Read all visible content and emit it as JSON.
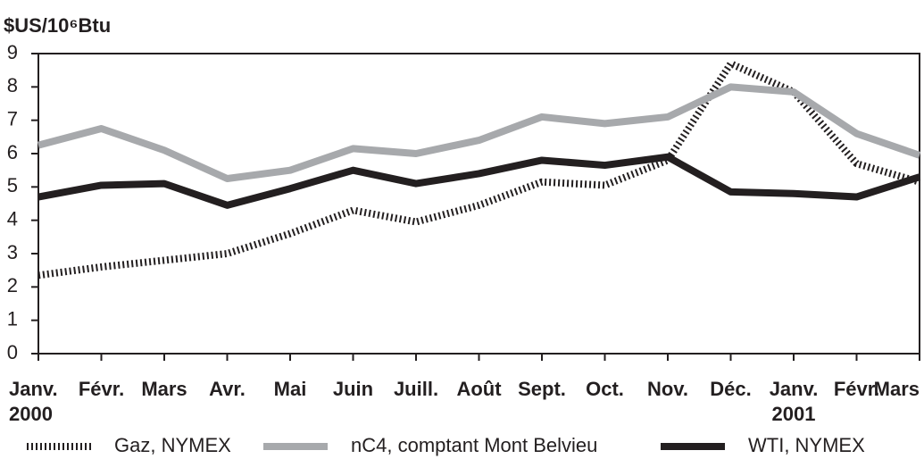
{
  "chart_data": {
    "type": "line",
    "y_label": "$US/10⁶Btu",
    "categories": [
      "Janv.",
      "Févr.",
      "Mars",
      "Avr.",
      "Mai",
      "Juin",
      "Juill.",
      "Août",
      "Sept.",
      "Oct.",
      "Nov.",
      "Déc.",
      "Janv.",
      "Févr.",
      "Mars"
    ],
    "years": [
      "2000",
      null,
      null,
      null,
      null,
      null,
      null,
      null,
      null,
      null,
      null,
      null,
      "2001",
      null,
      null
    ],
    "series": [
      {
        "name": "Gaz, NYMEX",
        "color": "#231f20",
        "dashed": true,
        "values": [
          2.35,
          2.6,
          2.8,
          3.0,
          3.6,
          4.3,
          3.95,
          4.45,
          5.15,
          5.05,
          5.8,
          8.7,
          7.85,
          5.7,
          5.15
        ]
      },
      {
        "name": "nC4, comptant Mont Belvieu",
        "color": "#a7a9ac",
        "dashed": false,
        "values": [
          6.25,
          6.75,
          6.1,
          5.25,
          5.5,
          6.15,
          6.0,
          6.4,
          7.1,
          6.9,
          7.1,
          8.0,
          7.85,
          6.6,
          5.95
        ]
      },
      {
        "name": "WTI, NYMEX",
        "color": "#231f20",
        "dashed": false,
        "values": [
          4.7,
          5.05,
          5.1,
          4.45,
          4.95,
          5.5,
          5.1,
          5.4,
          5.8,
          5.65,
          5.9,
          4.85,
          4.8,
          4.7,
          5.3
        ]
      }
    ],
    "ylim": [
      0,
      9
    ],
    "yticks": [
      0,
      1,
      2,
      3,
      4,
      5,
      6,
      7,
      8,
      9
    ],
    "grid": false
  }
}
